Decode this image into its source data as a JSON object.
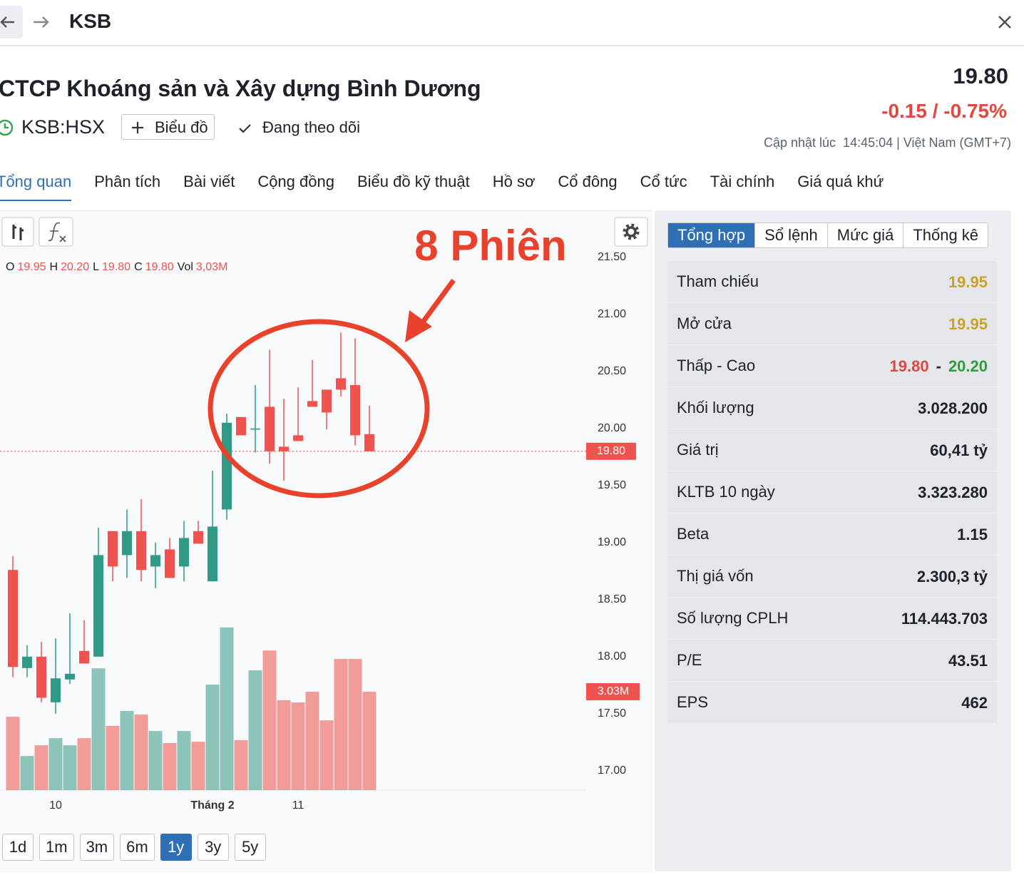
{
  "header": {
    "title": "KSB"
  },
  "stock": {
    "name": "CTCP Khoáng sản và Xây dựng Bình Dương",
    "ticker": "KSB:HSX",
    "chart_button": "Biểu đồ",
    "follow": "Đang theo dõi",
    "price": "19.80",
    "change": "-0.15 / -0.75%",
    "updated": "Cập nhật lúc  14:45:04 | Việt Nam (GMT+7)"
  },
  "nav": {
    "tabs": [
      "Tổng quan",
      "Phân tích",
      "Bài viết",
      "Cộng đồng",
      "Biểu đồ kỹ thuật",
      "Hồ sơ",
      "Cổ đông",
      "Cổ tức",
      "Tài chính",
      "Giá quá khứ"
    ],
    "active": 0
  },
  "chart_data": {
    "type": "candlestick",
    "annotation": "8 Phiên",
    "ohlc_legend": [
      {
        "key": "O",
        "value": "19.95"
      },
      {
        "key": "H",
        "value": "20.20"
      },
      {
        "key": "L",
        "value": "19.80"
      },
      {
        "key": "C",
        "value": "19.80"
      },
      {
        "key": "Vol",
        "value": "3,03M"
      }
    ],
    "categories": [
      null,
      null,
      null,
      "10",
      null,
      null,
      null,
      null,
      null,
      null,
      null,
      null,
      null,
      null,
      "Tháng 2",
      null,
      null,
      null,
      null,
      null,
      "11",
      null,
      null,
      null,
      null,
      null
    ],
    "open": [
      18.76,
      17.9,
      18.0,
      17.6,
      17.8,
      18.05,
      18.0,
      19.1,
      18.89,
      19.1,
      18.79,
      18.94,
      18.79,
      19.1,
      18.66,
      19.29,
      20.1,
      19.99,
      20.19,
      19.84,
      19.94,
      20.24,
      20.34,
      20.44,
      20.38,
      19.95
    ],
    "high": [
      18.88,
      18.1,
      18.13,
      18.16,
      18.38,
      18.32,
      19.13,
      19.1,
      19.29,
      19.38,
      19.0,
      19.04,
      19.19,
      19.19,
      19.63,
      20.13,
      20.1,
      20.38,
      20.69,
      20.26,
      20.36,
      20.6,
      20.34,
      20.84,
      20.79,
      20.2
    ],
    "low": [
      17.82,
      17.82,
      17.6,
      17.5,
      17.76,
      17.94,
      18.0,
      18.66,
      18.69,
      18.66,
      18.6,
      18.69,
      18.66,
      18.99,
      18.66,
      19.2,
      19.94,
      19.79,
      19.69,
      19.54,
      19.89,
      20.19,
      19.99,
      20.28,
      19.85,
      19.8
    ],
    "close": [
      17.91,
      18.0,
      17.64,
      17.81,
      17.85,
      17.94,
      18.89,
      18.79,
      19.1,
      18.76,
      18.89,
      18.69,
      19.04,
      18.99,
      19.14,
      20.05,
      19.94,
      20.0,
      19.8,
      19.8,
      19.89,
      20.19,
      20.14,
      20.34,
      19.94,
      19.8
    ],
    "volume": [
      2.26,
      1.05,
      1.38,
      1.6,
      1.38,
      1.6,
      3.75,
      1.98,
      2.44,
      2.33,
      1.82,
      1.45,
      1.82,
      1.49,
      3.25,
      5.01,
      1.54,
      3.69,
      4.3,
      2.77,
      2.7,
      3.03,
      2.15,
      4.04,
      4.04,
      3.03
    ],
    "up_color": "#2f9b86",
    "down_color": "#ef5350",
    "up_volume_color": "#8cc4b9",
    "down_volume_color": "#f29c9a",
    "ylim": [
      16.83,
      21.88
    ],
    "volume_ylim": [
      0,
      17.74
    ],
    "yticks": [
      {
        "value": 17,
        "label": "17.00"
      },
      {
        "value": 17.5,
        "label": "17.50"
      },
      {
        "value": 18,
        "label": "18.00"
      },
      {
        "value": 18.5,
        "label": "18.50"
      },
      {
        "value": 19,
        "label": "19.00"
      },
      {
        "value": 19.5,
        "label": "19.50"
      },
      {
        "value": 20,
        "label": "20.00"
      },
      {
        "value": 20.5,
        "label": "20.50"
      },
      {
        "value": 21,
        "label": "21.00"
      },
      {
        "value": 21.5,
        "label": "21.50"
      }
    ],
    "last_price": {
      "value": 19.8,
      "label": "19.80"
    },
    "last_volume": {
      "value": 3.03,
      "label": "3.03M"
    }
  },
  "periods": {
    "items": [
      "1d",
      "1m",
      "3m",
      "6m",
      "1y",
      "3y",
      "5y"
    ],
    "active": 4
  },
  "stats": {
    "tabs": [
      "Tổng hợp",
      "Sổ lệnh",
      "Mức giá",
      "Thống kê"
    ],
    "active": 0,
    "rows": [
      {
        "label": "Tham chiếu",
        "value": "19.95",
        "color": "#c9a227"
      },
      {
        "label": "Mở cửa",
        "value": "19.95",
        "color": "#c9a227"
      },
      {
        "label": "Thấp - Cao",
        "low": "19.80",
        "separator": "-",
        "high": "20.20",
        "low_color": "#e2473f",
        "high_color": "#2e9d3a"
      },
      {
        "label": "Khối lượng",
        "value": "3.028.200"
      },
      {
        "label": "Giá trị",
        "value": "60,41 tỷ"
      },
      {
        "label": "KLTB 10 ngày",
        "value": "3.323.280"
      },
      {
        "label": "Beta",
        "value": "1.15"
      },
      {
        "label": "Thị giá vốn",
        "value": "2.300,3 tỷ"
      },
      {
        "label": "Số lượng CPLH",
        "value": "114.443.703"
      },
      {
        "label": "P/E",
        "value": "43.51"
      },
      {
        "label": "EPS",
        "value": "462"
      }
    ]
  }
}
